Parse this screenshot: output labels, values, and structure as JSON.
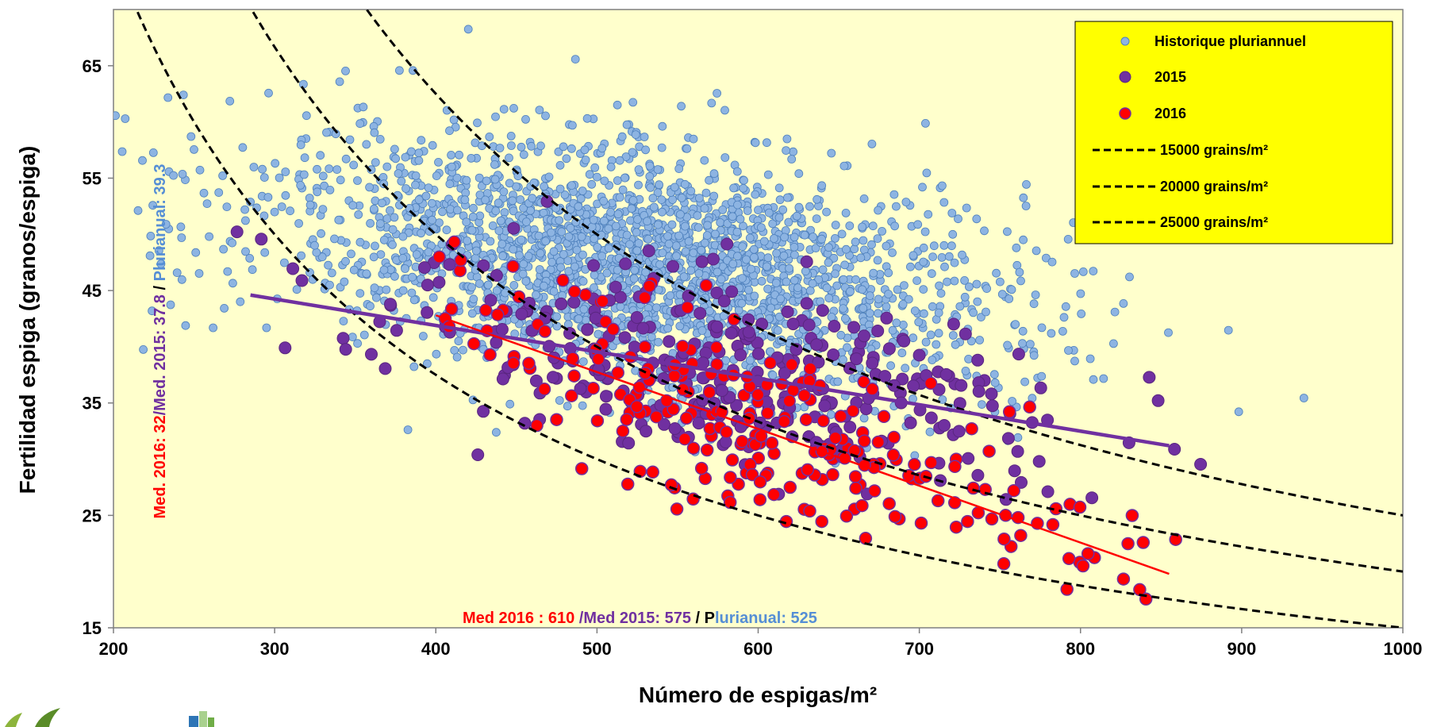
{
  "colors": {
    "plot_bg": "#FFFFCC",
    "legend_bg": "#FFFF00",
    "historique": "#8DB4E2",
    "historique_edge": "#4F81BD",
    "y2015": "#7030A0",
    "y2016": "#FF0000",
    "curve": "#000000"
  },
  "chart_data": {
    "type": "scatter",
    "xlabel": "Número de espigas/m²",
    "ylabel": "Fertilidad espiga (granos/espiga)",
    "xlim": [
      200,
      1000
    ],
    "ylim": [
      15,
      70
    ],
    "xticks": [
      200,
      300,
      400,
      500,
      600,
      700,
      800,
      900,
      1000
    ],
    "yticks": [
      15,
      25,
      35,
      45,
      55,
      65
    ],
    "grid": false,
    "legend_position": "top-right",
    "legend": [
      "Historique pluriannuel",
      "2015",
      "2016",
      "15000 grains/m²",
      "20000 grains/m²",
      "25000 grains/m²"
    ],
    "series": [
      {
        "name": "Historique pluriannuel",
        "kind": "scatter",
        "count": 2400,
        "center": [
          525,
          39.3
        ]
      },
      {
        "name": "2015",
        "kind": "scatter",
        "count": 320,
        "center": [
          575,
          37.8
        ]
      },
      {
        "name": "2016",
        "kind": "scatter",
        "count": 260,
        "center": [
          610,
          32
        ]
      }
    ],
    "iso_curves": [
      {
        "name": "15000 grains/m²",
        "grains": 15000
      },
      {
        "name": "20000 grains/m²",
        "grains": 20000
      },
      {
        "name": "25000 grains/m²",
        "grains": 25000
      }
    ],
    "trend_lines": [
      {
        "series": "2015",
        "x": [
          285,
          855
        ],
        "y": [
          44.6,
          31.2
        ]
      },
      {
        "series": "2016",
        "x": [
          400,
          855
        ],
        "y": [
          42.8,
          19.8
        ]
      }
    ],
    "annotations": {
      "bottom": {
        "part1": "Med 2016 : 610",
        "part2": " /Med 2015: 575",
        "part3": " / P",
        "part4": "lurianual: 525"
      },
      "side": {
        "part1": "Med. 2016: 32",
        "part2": "/Med. 2015: 37.8",
        "part3": " / ",
        "part4": "Plurianual: 39.3"
      }
    }
  }
}
